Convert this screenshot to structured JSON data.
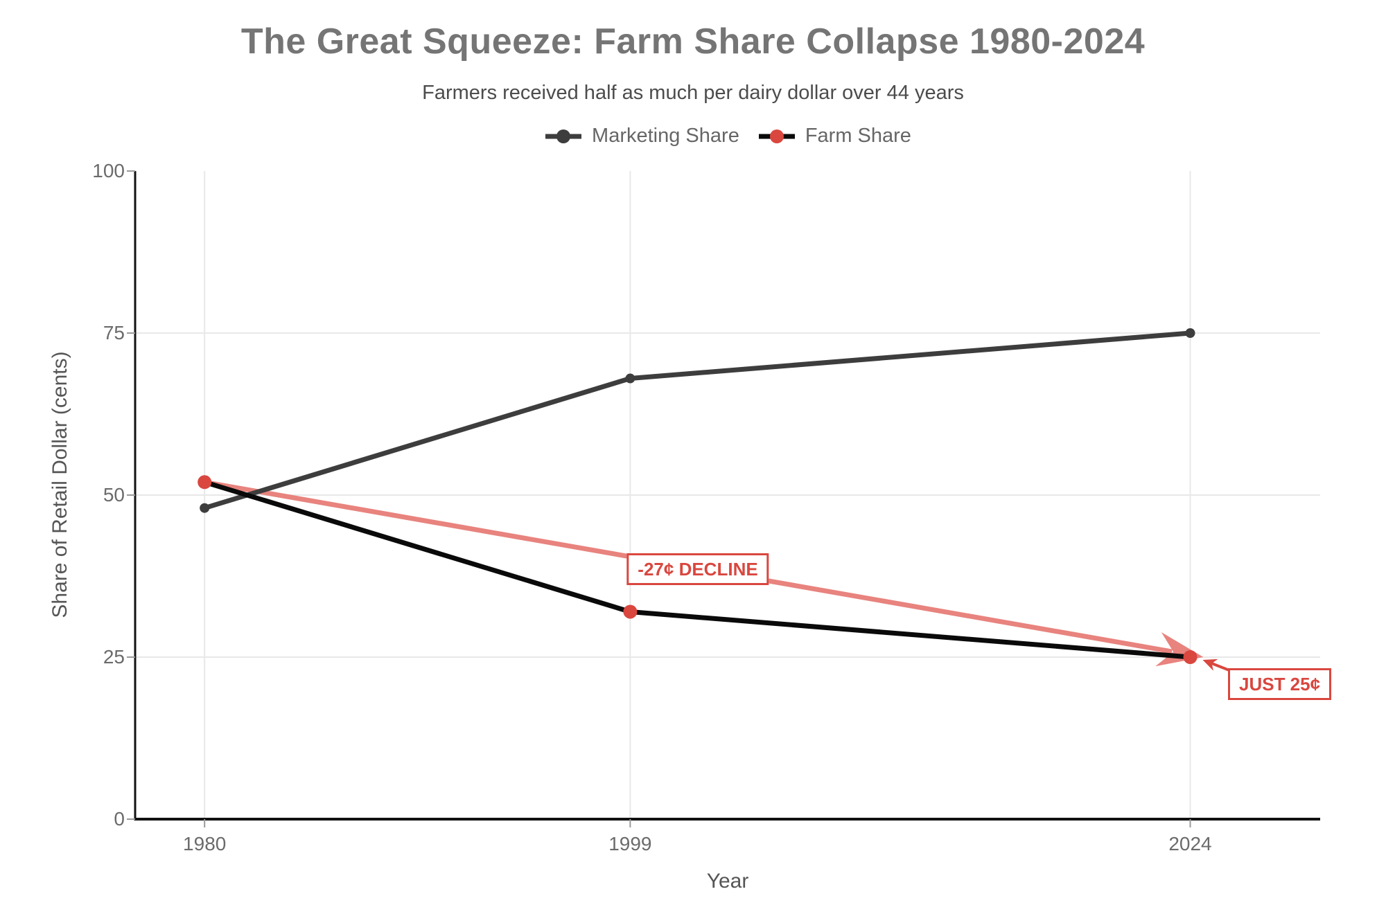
{
  "header": {
    "title": "The Great Squeeze: Farm Share Collapse 1980-2024",
    "subtitle": "Farmers received half as much per dairy dollar over 44 years"
  },
  "legend": {
    "items": [
      {
        "label": "Marketing Share",
        "line_color": "#3d3d3d",
        "marker_color": "#3d3d3d"
      },
      {
        "label": "Farm Share",
        "line_color": "#0a0a0a",
        "marker_color": "#d9473f"
      }
    ]
  },
  "axes": {
    "x_title": "Year",
    "y_title": "Share of Retail Dollar (cents)"
  },
  "annotations": {
    "decline_label": "-27¢ DECLINE",
    "final_label": "JUST 25¢"
  },
  "colors": {
    "accent_red": "#d9473f",
    "light_red": "#e8837e",
    "marketing_line": "#3d3d3d",
    "farm_line": "#0a0a0a",
    "grid": "#e8e8e8",
    "axis": "#111111",
    "tick_mark": "#999999",
    "tick_text": "#6b6b6b",
    "title_text": "#757575",
    "subtitle_text": "#4c4c4c",
    "axis_title_text": "#555555"
  },
  "chart_data": {
    "type": "line",
    "x": [
      1980,
      1999,
      2024
    ],
    "series": [
      {
        "name": "Marketing Share",
        "values": [
          48,
          68,
          75
        ],
        "line_color": "#3d3d3d",
        "marker_color": "#3d3d3d"
      },
      {
        "name": "Farm Share",
        "values": [
          52,
          32,
          25
        ],
        "line_color": "#0a0a0a",
        "marker_color": "#d9473f"
      }
    ],
    "title": "The Great Squeeze: Farm Share Collapse 1980-2024",
    "subtitle": "Farmers received half as much per dairy dollar over 44 years",
    "xlabel": "Year",
    "ylabel": "Share of Retail Dollar (cents)",
    "xlim": [
      1976.9,
      2029.8
    ],
    "ylim": [
      0,
      100
    ],
    "xticks": [
      1980,
      1999,
      2024
    ],
    "yticks": [
      0,
      25,
      50,
      75,
      100
    ],
    "grid": true,
    "legend_position": "top-center",
    "annotations": [
      {
        "type": "trend-arrow",
        "text": "-27¢ DECLINE",
        "from": {
          "x": 1980,
          "y": 52
        },
        "to": {
          "x": 2024,
          "y": 25
        },
        "line_color": "#e8837e",
        "box_color": "#d9473f"
      },
      {
        "type": "callout",
        "text": "JUST 25¢",
        "target": {
          "x": 2024,
          "y": 25
        },
        "box_color": "#d9473f"
      }
    ]
  }
}
